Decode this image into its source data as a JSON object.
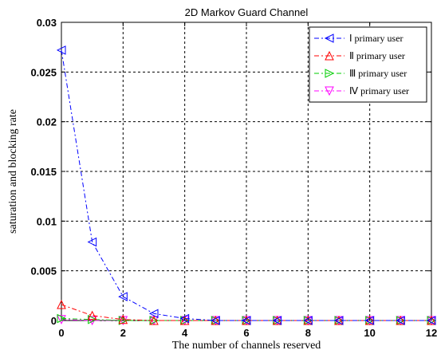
{
  "chart_data": {
    "type": "line",
    "title": "2D Markov Guard Channel",
    "xlabel": "The number of channels reserved",
    "ylabel": "saturation and blocking rate",
    "xlim": [
      0,
      12
    ],
    "ylim": [
      0,
      0.03
    ],
    "x_ticks": [
      "0",
      "2",
      "4",
      "6",
      "8",
      "10",
      "12"
    ],
    "y_ticks": [
      "0",
      "0.005",
      "0.01",
      "0.015",
      "0.02",
      "0.025",
      "0.03"
    ],
    "grid": true,
    "legend_position": "top-right",
    "x": [
      0,
      1,
      2,
      3,
      4,
      5,
      6,
      7,
      8,
      9,
      10,
      11,
      12
    ],
    "series": [
      {
        "name": "Ⅰ primary user",
        "color": "#0000ff",
        "marker": "triangle-left",
        "values": [
          0.0272,
          0.0079,
          0.0024,
          0.0007,
          0.0002,
          0.0,
          0.0,
          0.0,
          0.0,
          0.0,
          0.0,
          0.0,
          0.0
        ]
      },
      {
        "name": "Ⅱ primary user",
        "color": "#ff0000",
        "marker": "triangle-up",
        "values": [
          0.0016,
          0.0005,
          0.0001,
          0.0,
          0.0,
          0.0,
          0.0,
          0.0,
          0.0,
          0.0,
          0.0,
          0.0,
          0.0
        ]
      },
      {
        "name": "Ⅲ primary user",
        "color": "#00cc00",
        "marker": "triangle-right",
        "values": [
          0.0002,
          0.0001,
          0.0,
          0.0,
          0.0,
          0.0,
          0.0,
          0.0,
          0.0,
          0.0,
          0.0,
          0.0,
          0.0
        ]
      },
      {
        "name": "Ⅳ primary user",
        "color": "#ff00ff",
        "marker": "triangle-down",
        "values": [
          0.0001,
          0.0,
          0.0,
          0.0,
          0.0,
          0.0,
          0.0,
          0.0,
          0.0,
          0.0,
          0.0,
          0.0,
          0.0
        ]
      }
    ]
  }
}
